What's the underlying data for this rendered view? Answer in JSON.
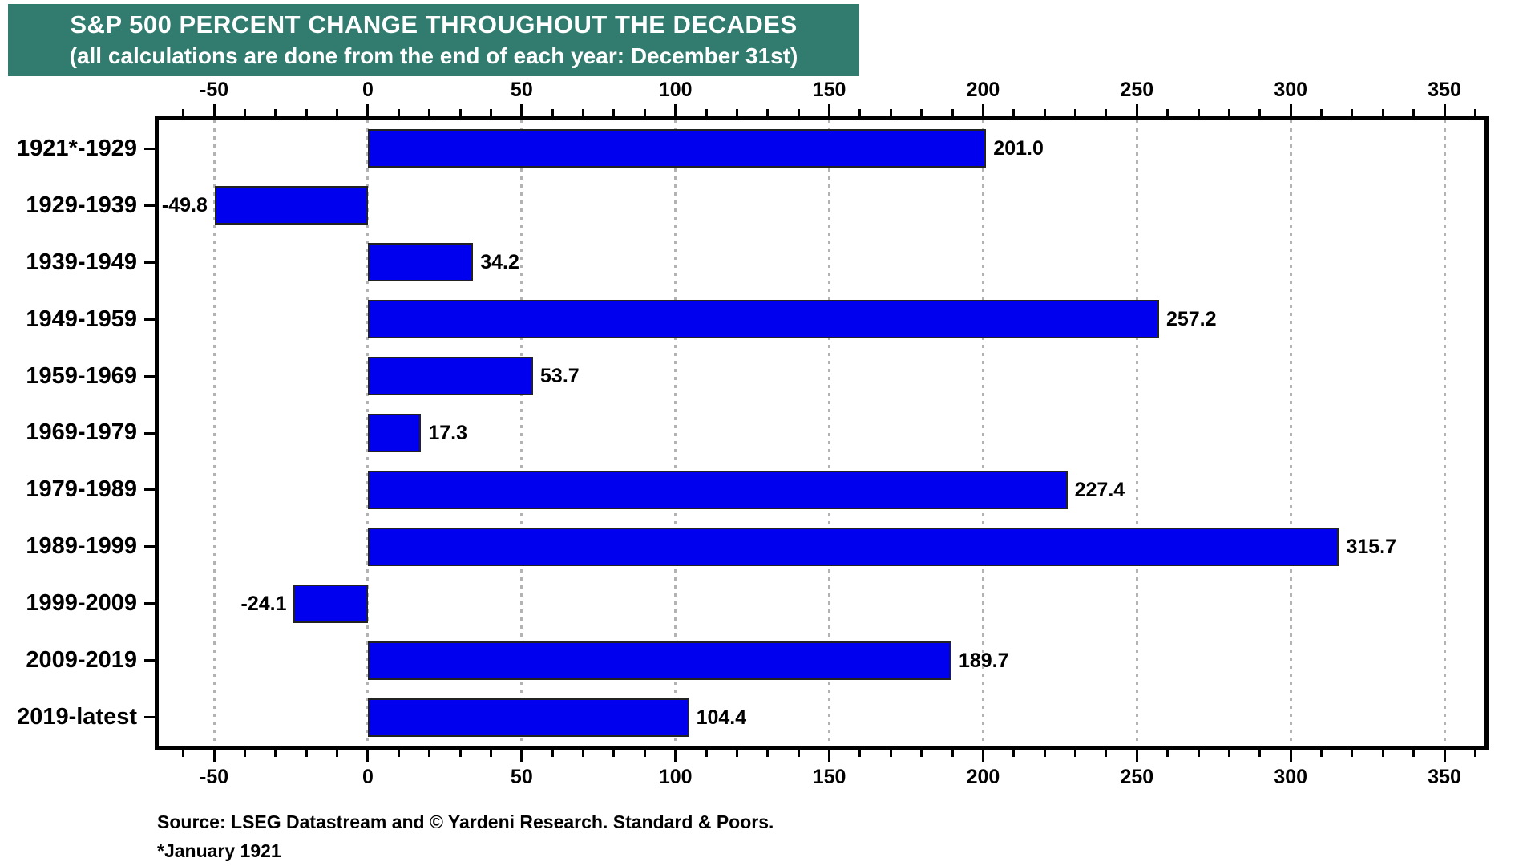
{
  "banner": {
    "title": "S&P 500 PERCENT CHANGE THROUGHOUT THE DECADES",
    "subtitle": "(all calculations are done from the end of each year: December 31st)",
    "bg_color": "#317C6F",
    "text_color": "#FFFFFF"
  },
  "chart_data": {
    "type": "bar",
    "orientation": "horizontal",
    "title": "S&P 500 PERCENT CHANGE THROUGHOUT THE DECADES",
    "subtitle": "(all calculations are done from the end of each year: December 31st)",
    "categories": [
      "1921*-1929",
      "1929-1939",
      "1939-1949",
      "1949-1959",
      "1959-1969",
      "1969-1979",
      "1979-1989",
      "1989-1999",
      "1999-2009",
      "2009-2019",
      "2019-latest"
    ],
    "values": [
      201.0,
      -49.8,
      34.2,
      257.2,
      53.7,
      17.3,
      227.4,
      315.7,
      -24.1,
      189.7,
      104.4
    ],
    "value_labels": [
      "201.0",
      "-49.8",
      "34.2",
      "257.2",
      "53.7",
      "17.3",
      "227.4",
      "315.7",
      "-24.1",
      "189.7",
      "104.4"
    ],
    "xlabel": "",
    "ylabel": "",
    "xlim": [
      -68,
      363
    ],
    "xticks": [
      -50,
      0,
      50,
      100,
      150,
      200,
      250,
      300,
      350
    ],
    "minor_tick_step": 10,
    "grid": "dotted-vertical-at-major-ticks",
    "legend": "none",
    "axis_labels_position": "top-and-bottom",
    "bar_color": "#0000EE",
    "bar_border_color": "#222222",
    "grid_color": "#B3B3B3"
  },
  "footer": {
    "source": "Source: LSEG Datastream and © Yardeni Research. Standard & Poors.",
    "note": "*January 1921"
  }
}
